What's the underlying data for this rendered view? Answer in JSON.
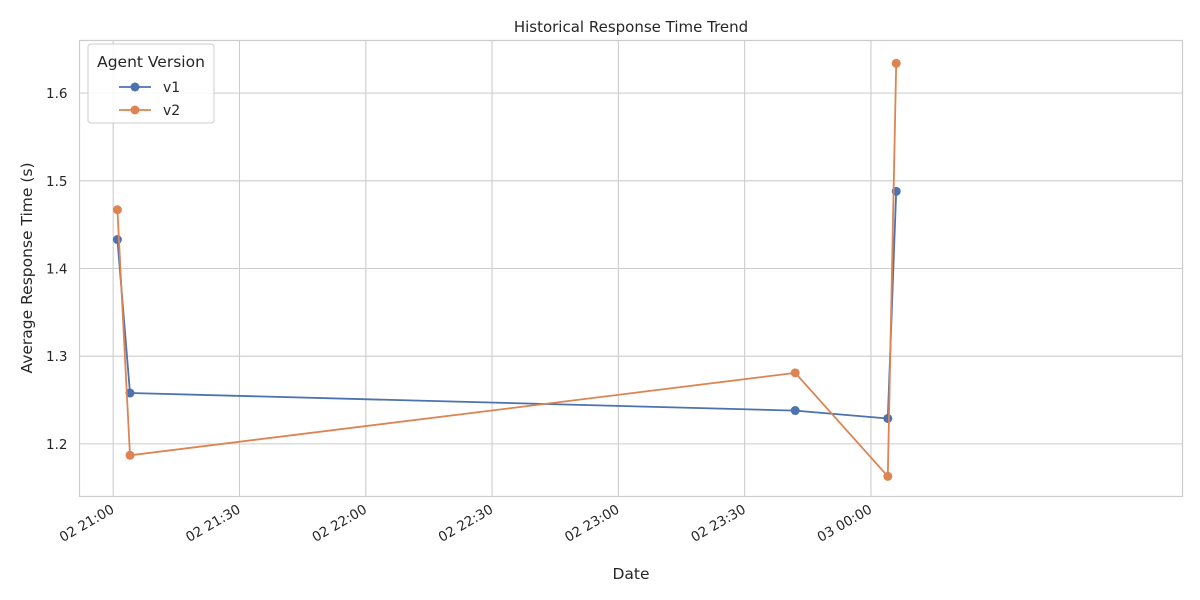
{
  "chart_data": {
    "type": "line",
    "title": "Historical Response Time Trend",
    "xlabel": "Date",
    "ylabel": "Average Response Time (s)",
    "x_ticks": [
      "02 21:00",
      "02 21:30",
      "02 22:00",
      "02 22:30",
      "02 23:00",
      "02 23:30",
      "03 00:00"
    ],
    "y_ticks": [
      "1.2",
      "1.3",
      "1.4",
      "1.5",
      "1.6"
    ],
    "ylim": [
      1.14,
      1.66
    ],
    "xlim": [
      "02 20:52",
      "03 01:14"
    ],
    "grid": true,
    "legend": {
      "title": "Agent Version",
      "position": "top-left"
    },
    "series": [
      {
        "name": "v1",
        "color": "#4c72b0",
        "points": [
          {
            "x": "02 21:01",
            "y": 1.433
          },
          {
            "x": "02 21:04",
            "y": 1.258
          },
          {
            "x": "02 23:42",
            "y": 1.238
          },
          {
            "x": "03 00:04",
            "y": 1.229
          },
          {
            "x": "03 00:06",
            "y": 1.488
          }
        ]
      },
      {
        "name": "v2",
        "color": "#dd8452",
        "points": [
          {
            "x": "02 21:01",
            "y": 1.467
          },
          {
            "x": "02 21:04",
            "y": 1.187
          },
          {
            "x": "02 23:42",
            "y": 1.281
          },
          {
            "x": "03 00:04",
            "y": 1.163
          },
          {
            "x": "03 00:06",
            "y": 1.634
          }
        ]
      }
    ]
  }
}
